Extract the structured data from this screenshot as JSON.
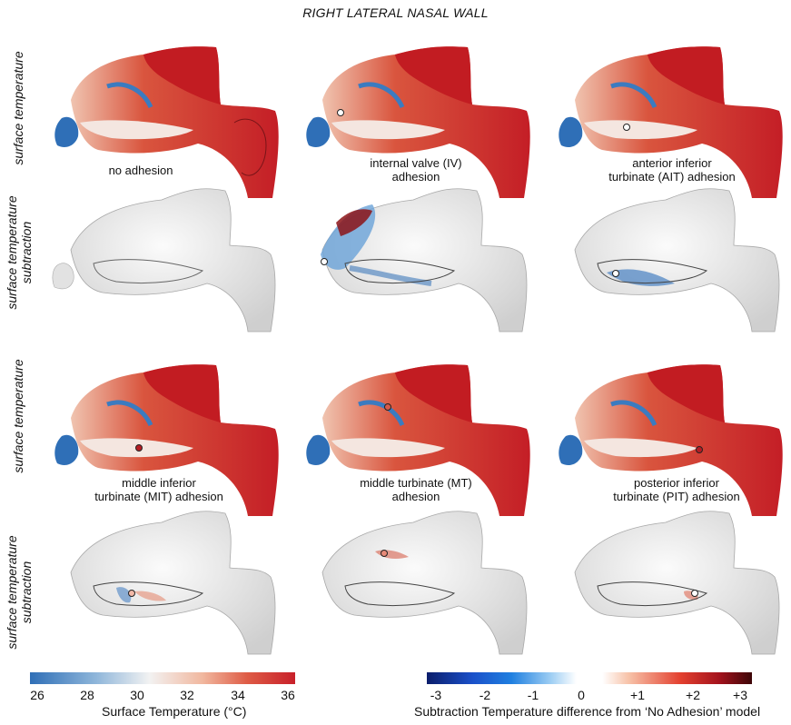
{
  "title": "RIGHT LATERAL NASAL WALL",
  "row_labels": {
    "row1": "surface temperature",
    "row2_line1": "surface temperature",
    "row2_line2": "subtraction",
    "row3": "surface temperature",
    "row4_line1": "surface temperature",
    "row4_line2": "subtraction"
  },
  "captions": {
    "no_adhesion": "no adhesion",
    "iv_line1": "internal valve (IV)",
    "iv_line2": "adhesion",
    "ait_line1": "anterior inferior",
    "ait_line2": "turbinate (AIT) adhesion",
    "mit_line1": "middle inferior",
    "mit_line2": "turbinate (MIT) adhesion",
    "mt_line1": "middle turbinate (MT)",
    "mt_line2": "adhesion",
    "pit_line1": "posterior inferior",
    "pit_line2": "turbinate (PIT) adhesion"
  },
  "colorbar_temperature": {
    "ticks": [
      "26",
      "28",
      "30",
      "32",
      "34",
      "36"
    ],
    "label": "Surface Temperature (°C)",
    "colors": [
      "#2f6fb7",
      "#f2f2f2",
      "#c8202a"
    ]
  },
  "colorbar_subtraction": {
    "ticks": [
      "-3",
      "-2",
      "-1",
      "0",
      "+1",
      "+2",
      "+3"
    ],
    "label": "Subtraction Temperature difference from ‘No Adhesion’ model",
    "colors": [
      "#0b1d6b",
      "#1f7fe0",
      "#ffffff",
      "#e3402f",
      "#5a0a10"
    ]
  }
}
